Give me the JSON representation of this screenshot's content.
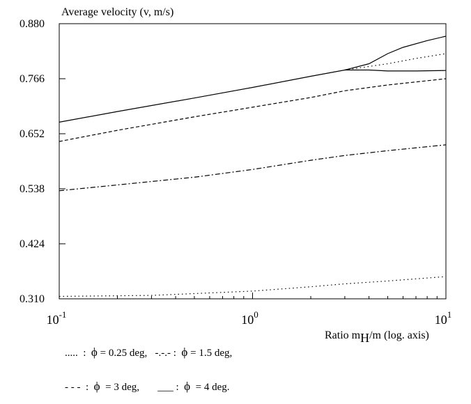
{
  "chart_data": {
    "type": "line",
    "title": "",
    "ylabel": "Average velocity (v, m/s)",
    "xlabel": "Ratio m",
    "xlabel_sub": "H",
    "xlabel_suffix": "/m  (log. axis)",
    "xscale": "log",
    "xlim": [
      0.1,
      10
    ],
    "ylim": [
      0.31,
      0.88
    ],
    "yticks": [
      "0.880",
      "0.766",
      "0.652",
      "0.538",
      "0.424",
      "0.310"
    ],
    "xticks": [
      {
        "base": "10",
        "exp": "-1",
        "value": 0.1
      },
      {
        "base": "10",
        "exp": "0",
        "value": 1
      },
      {
        "base": "10",
        "exp": "1",
        "value": 10
      }
    ],
    "series": [
      {
        "dash": "1.5,4",
        "x": [
          0.1,
          0.3,
          1,
          2,
          3,
          5,
          10
        ],
        "y": [
          0.315,
          0.317,
          0.326,
          0.335,
          0.341,
          0.347,
          0.356
        ]
      },
      {
        "dash": "7,3,2,3",
        "x": [
          0.1,
          0.2,
          0.5,
          1,
          2,
          3,
          5,
          10
        ],
        "y": [
          0.534,
          0.546,
          0.562,
          0.578,
          0.597,
          0.607,
          0.617,
          0.629
        ]
      },
      {
        "dash": "5,3",
        "x": [
          0.1,
          0.2,
          0.5,
          1,
          2,
          3,
          5,
          10
        ],
        "y": [
          0.636,
          0.659,
          0.687,
          0.707,
          0.727,
          0.741,
          0.753,
          0.766
        ]
      },
      {
        "dash": "",
        "x": [
          0.1,
          0.2,
          0.5,
          1,
          2,
          3,
          4,
          5,
          7,
          10
        ],
        "y": [
          0.676,
          0.698,
          0.726,
          0.748,
          0.771,
          0.784,
          0.784,
          0.782,
          0.782,
          0.783
        ]
      },
      {
        "dash": "",
        "x": [
          3,
          4,
          5,
          6,
          8,
          10
        ],
        "y": [
          0.784,
          0.797,
          0.818,
          0.831,
          0.845,
          0.854
        ]
      },
      {
        "dash": "1.5,4",
        "x": [
          3,
          5,
          7,
          10
        ],
        "y": [
          0.784,
          0.797,
          0.808,
          0.818
        ]
      }
    ]
  },
  "legend": {
    "row1_a": ".....  :  ",
    "row1_b": " = 0.25 deg,   -.-.- :  ",
    "row1_c": " = 1.5 deg,",
    "row2_a": "- - -  :  ",
    "row2_b": "  = 3 deg,       ___ :  ",
    "row2_c": "  = 4 deg.",
    "phi": "ϕ"
  }
}
